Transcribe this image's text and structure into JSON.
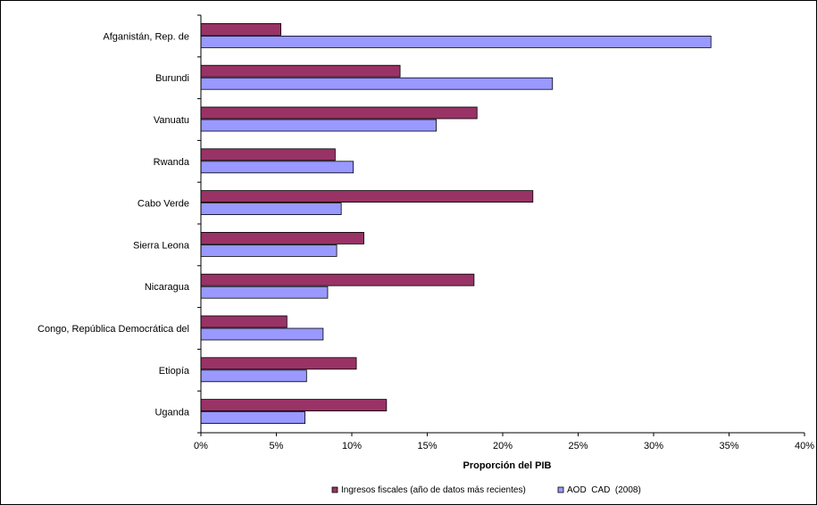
{
  "chart_data": {
    "type": "bar",
    "orientation": "horizontal",
    "categories": [
      "Afganistán, Rep. de",
      "Burundi",
      "Vanuatu",
      "Rwanda",
      "Cabo Verde",
      "Sierra Leona",
      "Nicaragua",
      "Congo, República Democrática del",
      "Etiopía",
      "Uganda"
    ],
    "series": [
      {
        "name": "Ingresos fiscales (año de datos más recientes)",
        "color": "#993366",
        "values": [
          5.3,
          13.2,
          18.3,
          8.9,
          22.0,
          10.8,
          18.1,
          5.7,
          10.3,
          12.3
        ]
      },
      {
        "name": "AOD  CAD  (2008)",
        "color": "#9999ff",
        "values": [
          33.8,
          23.3,
          15.6,
          10.1,
          9.3,
          9.0,
          8.4,
          8.1,
          7.0,
          6.9
        ]
      }
    ],
    "xlabel": "Proporción del PIB",
    "ylabel": "",
    "xlim": [
      0,
      40
    ],
    "xticks": [
      0,
      5,
      10,
      15,
      20,
      25,
      30,
      35,
      40
    ],
    "xtick_labels": [
      "0%",
      "5%",
      "10%",
      "15%",
      "20%",
      "25%",
      "30%",
      "35%",
      "40%"
    ],
    "grid": false,
    "legend_position": "bottom"
  }
}
